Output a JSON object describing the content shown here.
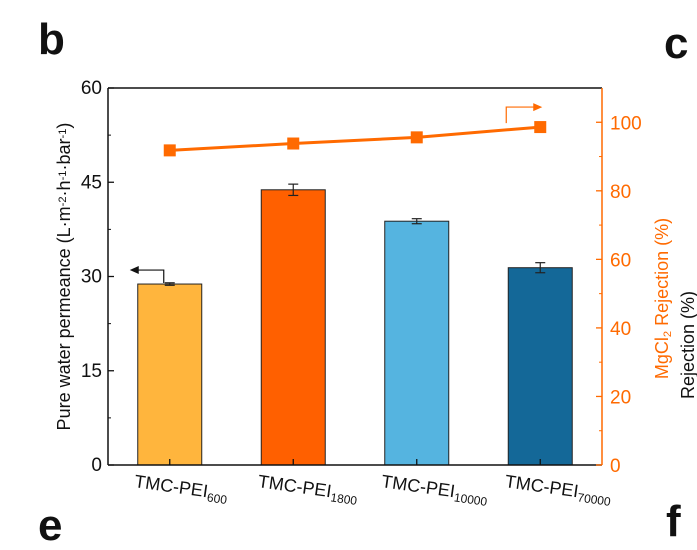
{
  "panel_labels": {
    "main": "b",
    "top_right": "c",
    "bottom_left": "e",
    "bottom_right": "f"
  },
  "cut_text": "Rejection (%)",
  "chart_data": {
    "type": "bar",
    "categories": [
      {
        "base": "TMC-PEI",
        "sub": "600"
      },
      {
        "base": "TMC-PEI",
        "sub": "1800"
      },
      {
        "base": "TMC-PEI",
        "sub": "10000"
      },
      {
        "base": "TMC-PEI",
        "sub": "70000"
      }
    ],
    "left_axis": {
      "label_parts": [
        {
          "t": "Pure water permeance (L·m",
          "s": "normal"
        },
        {
          "t": "-2",
          "s": "super"
        },
        {
          "t": "·h",
          "s": "normal"
        },
        {
          "t": "-1",
          "s": "super"
        },
        {
          "t": "·bar",
          "s": "normal"
        },
        {
          "t": "-1",
          "s": "super"
        },
        {
          "t": ")",
          "s": "normal"
        }
      ],
      "ylim": [
        0,
        60
      ],
      "ticks": [
        0,
        15,
        30,
        45,
        60
      ],
      "color": "#111111"
    },
    "right_axis": {
      "label_parts": [
        {
          "t": "MgCl",
          "s": "normal"
        },
        {
          "t": "2",
          "s": "sub"
        },
        {
          "t": " Rejection (%)",
          "s": "normal"
        }
      ],
      "ylim": [
        0,
        110
      ],
      "ticks": [
        0,
        20,
        40,
        60,
        80,
        100
      ],
      "color": "#ff6a00"
    },
    "bars": {
      "values": [
        28.8,
        43.8,
        38.8,
        31.4
      ],
      "errors": [
        0.2,
        0.9,
        0.4,
        0.8
      ],
      "colors": [
        "#ffb53d",
        "#ff6000",
        "#55b4e0",
        "#146898"
      ]
    },
    "rejection": {
      "values": [
        91.8,
        93.8,
        95.6,
        98.6
      ],
      "color": "#ff6a00"
    },
    "grid": false
  }
}
